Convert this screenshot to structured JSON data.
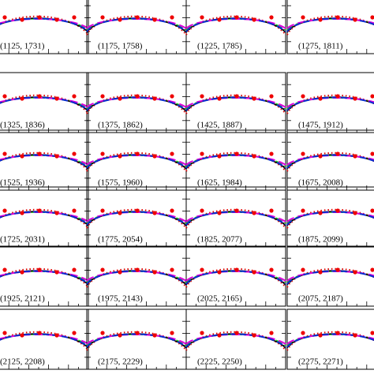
{
  "chart_data": {
    "type": "panel-grid",
    "columns": 4,
    "panels": [
      "(1125, 1731)",
      "(1175, 1758)",
      "(1225, 1785)",
      "(1275, 1811)",
      "(1325, 1836)",
      "(1375, 1862)",
      "(1425, 1887)",
      "(1475, 1912)",
      "(1525, 1936)",
      "(1575, 1960)",
      "(1625, 1984)",
      "(1675, 2008)",
      "(1725, 2031)",
      "(1775, 2054)",
      "(1825, 2077)",
      "(1875, 2099)",
      "(1925, 2121)",
      "(1975, 2143)",
      "(2025, 2165)",
      "(2075, 2187)",
      "(2125, 2208)",
      "(2175, 2229)",
      "(2225, 2250)",
      "(2275, 2271)"
    ]
  }
}
